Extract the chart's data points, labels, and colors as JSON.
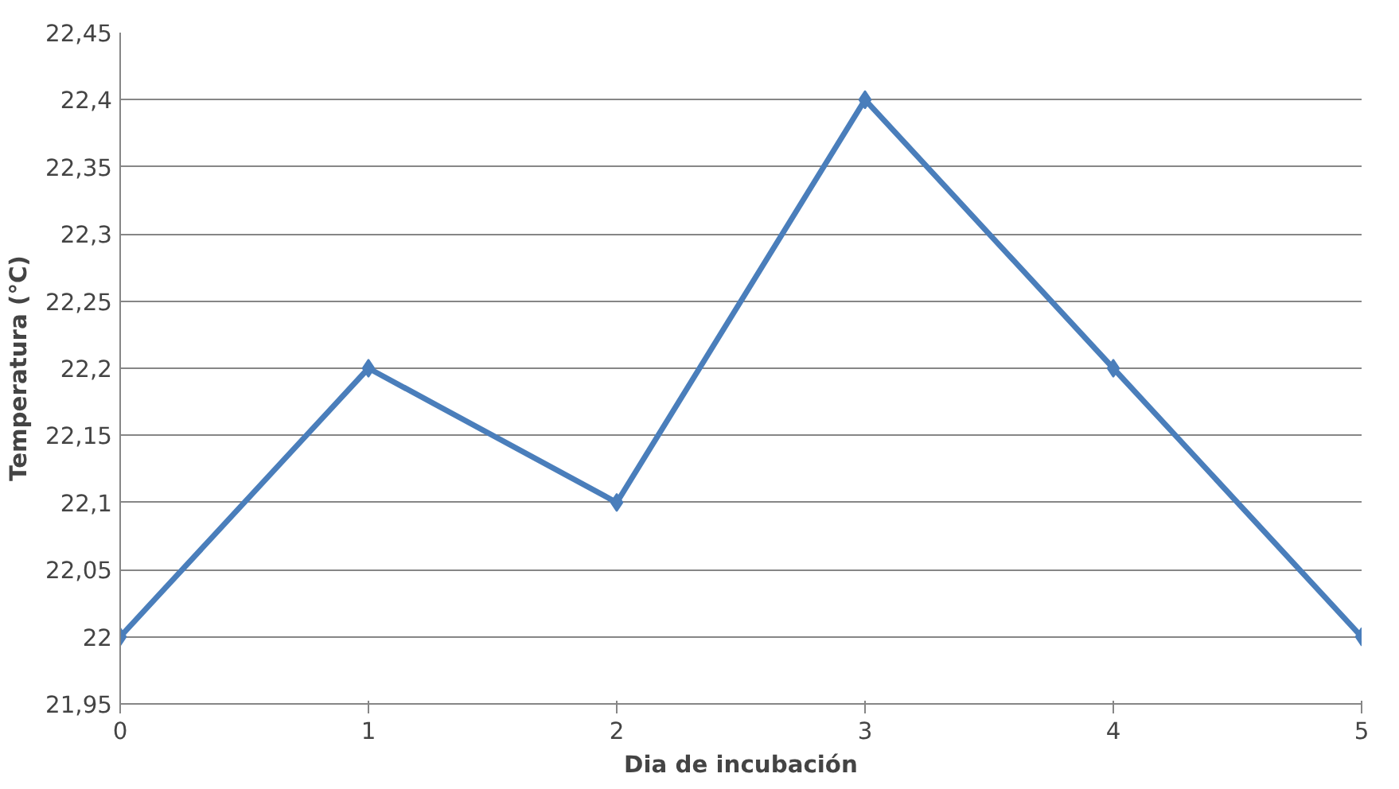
{
  "chart_data": {
    "type": "line",
    "xlabel": "Dia de incubación",
    "ylabel": "Temperatura (°C)",
    "x": [
      0,
      1,
      2,
      3,
      4,
      5
    ],
    "series": [
      {
        "color": "#4a7ebb",
        "values": [
          22,
          22.2,
          22.1,
          22.4,
          22.2,
          22
        ]
      }
    ],
    "xlim": [
      0,
      5
    ],
    "xticks": [
      0,
      1,
      2,
      3,
      4,
      5
    ],
    "ylim": [
      21.95,
      22.45
    ],
    "yticks": [
      {
        "value": 21.95,
        "label": "21,95"
      },
      {
        "value": 22,
        "label": "22"
      },
      {
        "value": 22.05,
        "label": "22,05"
      },
      {
        "value": 22.1,
        "label": "22,1"
      },
      {
        "value": 22.15,
        "label": "22,15"
      },
      {
        "value": 22.2,
        "label": "22,2"
      },
      {
        "value": 22.25,
        "label": "22,25"
      },
      {
        "value": 22.3,
        "label": "22,3"
      },
      {
        "value": 22.35,
        "label": "22,35"
      },
      {
        "value": 22.4,
        "label": "22,4"
      },
      {
        "value": 22.45,
        "label": "22,45"
      }
    ],
    "grid": "y",
    "marker": "diamond",
    "line_style": "solid"
  }
}
